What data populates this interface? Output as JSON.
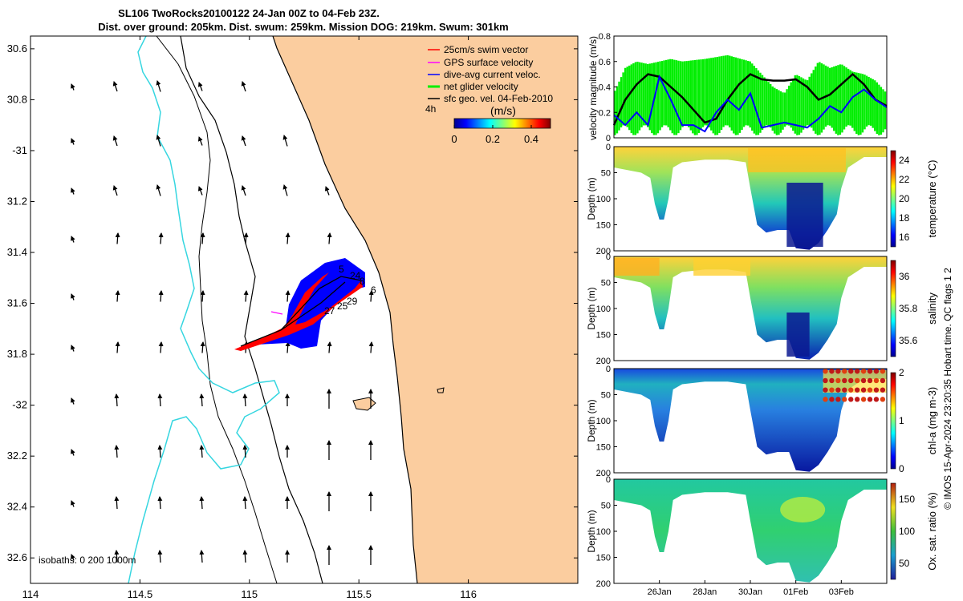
{
  "title_line1": "SL106 TwoRocks20100122 24-Jan 00Z to 04-Feb 23Z.",
  "title_line2": "Dist. over ground: 205km. Dist. swum: 259km. Mission DOG: 219km. Swum: 301km",
  "credit": "© IMOS 15-Apr-2024 23:20:35 Hobart time. QC flags 1  2",
  "colors": {
    "land": "#fbcd9f",
    "isobath_shallow": "#36d6e0",
    "isobath_deep": "#000000",
    "swim_vector": "#ff0000",
    "gps_velocity": "#ff00ff",
    "dive_current": "#0000ff",
    "net_velocity": "#00ee00",
    "geo_vector": "#000000",
    "trajectory_blue": "#0000ff",
    "trajectory_red": "#ff0000"
  },
  "chart_data": [
    {
      "type": "line",
      "name": "map",
      "xlim": [
        114,
        116.5
      ],
      "ylim": [
        -32.7,
        -30.55
      ],
      "x_ticks": [
        114,
        114.5,
        115,
        115.5,
        116
      ],
      "x_tick_labels": [
        "114",
        "114.5",
        "115",
        "115.5",
        "116"
      ],
      "y_ticks": [
        -30.6,
        -30.8,
        -31,
        -31.2,
        -31.4,
        -31.6,
        -31.8,
        -32,
        -32.2,
        -32.4,
        -32.6
      ],
      "y_tick_labels": [
        "30.6",
        "30.8",
        "-31",
        "31.2",
        "31.4",
        "31.6",
        "31.8",
        "-32",
        "32.2",
        "32.4",
        "32.6"
      ],
      "legend": [
        {
          "label": "25cm/s swim vector",
          "color": "#ff0000"
        },
        {
          "label": "GPS surface velocity",
          "color": "#ff00ff"
        },
        {
          "label": "dive-avg current veloc.",
          "color": "#0000ff"
        },
        {
          "label": "net glider velocity",
          "color": "#00ee00"
        },
        {
          "label": "sfc geo. vel. 04-Feb-2010",
          "color": "#000000"
        }
      ],
      "colorbar": {
        "label": "(m/s)",
        "ticks": [
          0,
          0.2,
          0.4
        ],
        "range": [
          0,
          0.5
        ],
        "side_label": "4h"
      },
      "isobaths_label": "isobaths: 0   200  1000m",
      "track_labels": [
        "5",
        "24",
        "8",
        "6",
        "29",
        "25",
        "27"
      ]
    },
    {
      "type": "line",
      "name": "velocity",
      "ylabel": "velocity magnitude (m/s)",
      "ylim": [
        0,
        0.8
      ],
      "y_ticks": [
        0,
        0.2,
        0.4,
        0.6,
        0.8
      ],
      "x_range_days": [
        24,
        36
      ],
      "series": [
        {
          "color": "#00ee00",
          "x": [
            24.0,
            24.5,
            25.0,
            25.5,
            26.0,
            26.5,
            27.0,
            28.0,
            29.0,
            30.0,
            30.5,
            31.0,
            31.5,
            32.0,
            32.5,
            33.0,
            33.5,
            34.0,
            34.5,
            35.0,
            35.5,
            36.0
          ],
          "values": [
            0.35,
            0.55,
            0.6,
            0.58,
            0.6,
            0.62,
            0.6,
            0.62,
            0.65,
            0.6,
            0.5,
            0.4,
            0.35,
            0.5,
            0.45,
            0.6,
            0.55,
            0.58,
            0.52,
            0.5,
            0.45,
            0.35
          ]
        },
        {
          "color": "#000000",
          "x": [
            24.0,
            24.5,
            25.0,
            25.5,
            26.0,
            26.5,
            27.0,
            27.5,
            28.0,
            28.5,
            29.0,
            29.5,
            30.0,
            30.5,
            31.0,
            31.5,
            32.0,
            32.5,
            33.0,
            33.5,
            34.0,
            34.5,
            35.0,
            35.5,
            36.0
          ],
          "values": [
            0.1,
            0.3,
            0.42,
            0.5,
            0.48,
            0.4,
            0.32,
            0.22,
            0.12,
            0.15,
            0.3,
            0.42,
            0.5,
            0.46,
            0.45,
            0.45,
            0.46,
            0.4,
            0.3,
            0.34,
            0.42,
            0.5,
            0.42,
            0.3,
            0.25
          ]
        },
        {
          "color": "#0000ff",
          "x": [
            24.0,
            24.5,
            25.0,
            25.5,
            26.0,
            26.5,
            27.0,
            27.5,
            28.0,
            28.5,
            29.0,
            29.5,
            30.0,
            30.5,
            31.0,
            31.5,
            32.0,
            32.5,
            33.0,
            33.5,
            34.0,
            34.5,
            35.0,
            35.5,
            36.0
          ],
          "values": [
            0.18,
            0.1,
            0.2,
            0.1,
            0.48,
            0.3,
            0.1,
            0.1,
            0.05,
            0.2,
            0.3,
            0.22,
            0.35,
            0.08,
            0.1,
            0.12,
            0.1,
            0.08,
            0.15,
            0.25,
            0.2,
            0.32,
            0.38,
            0.3,
            0.24
          ]
        }
      ]
    },
    {
      "type": "heatmap",
      "name": "temperature",
      "ylabel": "Depth (m)",
      "cbar_label": "temperature (°C)",
      "cbar_ticks": [
        24,
        22,
        20,
        18,
        16
      ],
      "cbar_range": [
        15,
        25
      ],
      "y_ticks": [
        0,
        50,
        100,
        150,
        200
      ]
    },
    {
      "type": "heatmap",
      "name": "salinity",
      "ylabel": "Depth (m)",
      "cbar_label": "salinity",
      "cbar_ticks": [
        36,
        35.8,
        35.6
      ],
      "cbar_range": [
        35.5,
        36.1
      ],
      "y_ticks": [
        0,
        50,
        100,
        150,
        200
      ]
    },
    {
      "type": "heatmap",
      "name": "chl",
      "ylabel": "Depth (m)",
      "cbar_label": "chl-a (mg m-3)",
      "cbar_ticks": [
        2,
        1,
        0
      ],
      "cbar_range": [
        0,
        2
      ],
      "y_ticks": [
        0,
        50,
        100,
        150,
        200
      ]
    },
    {
      "type": "heatmap",
      "name": "oxygen",
      "ylabel": "Depth (m)",
      "cbar_label": "Ox. sat. ratio (%)",
      "cbar_ticks": [
        150,
        100,
        50
      ],
      "cbar_range": [
        25,
        175
      ],
      "y_ticks": [
        0,
        50,
        100,
        150,
        200
      ],
      "x_ticks": [
        26,
        28,
        30,
        32,
        34
      ],
      "x_tick_labels": [
        "26Jan",
        "28Jan",
        "30Jan",
        "01Feb",
        "03Feb"
      ]
    }
  ]
}
